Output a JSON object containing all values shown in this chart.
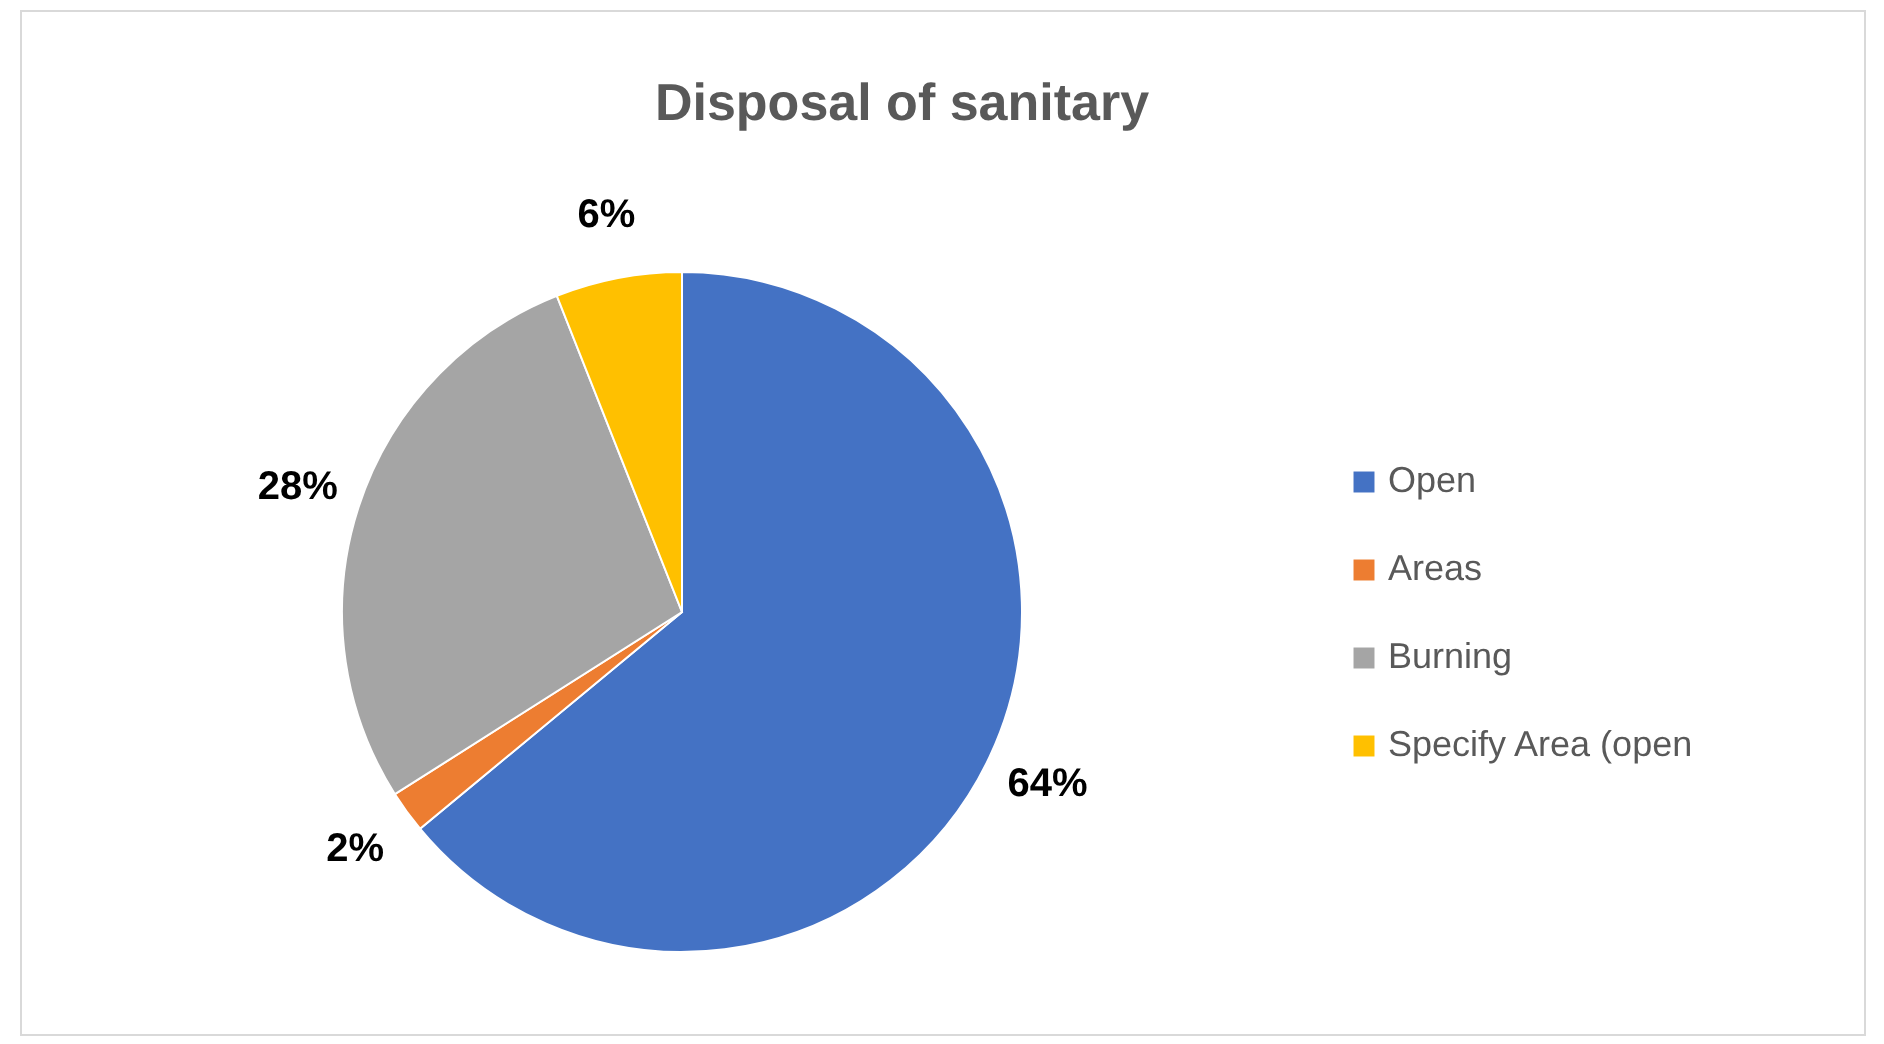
{
  "chart_data": {
    "type": "pie",
    "title": "Disposal of sanitary",
    "categories": [
      "Open",
      "Areas",
      "Burning",
      "Specify Area (open"
    ],
    "values": [
      64,
      2,
      28,
      6
    ],
    "colors": [
      "#4472c4",
      "#ed7d31",
      "#a5a5a5",
      "#ffc000"
    ],
    "value_labels": [
      "64%",
      "2%",
      "28%",
      "6%"
    ],
    "legend": "right"
  }
}
